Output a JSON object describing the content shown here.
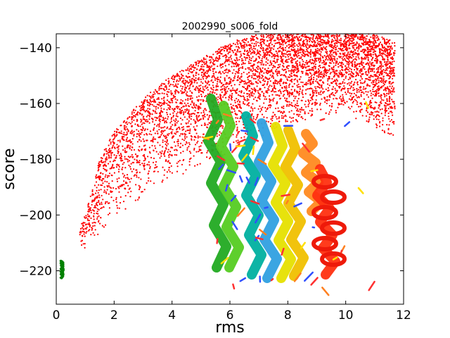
{
  "chart_data": {
    "type": "scatter",
    "title": "2002990_s006_fold",
    "xlabel": "rms",
    "ylabel": "score",
    "xlim": [
      0,
      12
    ],
    "ylim": [
      -232,
      -135
    ],
    "x_ticks": [
      "0",
      "2",
      "4",
      "6",
      "8",
      "10",
      "12"
    ],
    "y_ticks": [
      "−140",
      "−160",
      "−180",
      "−200",
      "−220"
    ],
    "x_tick_values": [
      0,
      2,
      4,
      6,
      8,
      10,
      12
    ],
    "y_tick_values": [
      -140,
      -160,
      -180,
      -200,
      -220
    ],
    "grid": false,
    "series": [
      {
        "color": "#ff0000",
        "description_points": "dense cloud of decoy scores; lower envelope rises from about -210 at rms 1 to about -150 at rms 10",
        "envelope": [
          {
            "x": 0.8,
            "ymin": -211,
            "ymax": -205
          },
          {
            "x": 1.0,
            "ymin": -213,
            "ymax": -200
          },
          {
            "x": 1.5,
            "ymin": -207,
            "ymax": -180
          },
          {
            "x": 2.0,
            "ymin": -201,
            "ymax": -170
          },
          {
            "x": 3.0,
            "ymin": -194,
            "ymax": -158
          },
          {
            "x": 4.0,
            "ymin": -188,
            "ymax": -150
          },
          {
            "x": 5.0,
            "ymin": -183,
            "ymax": -144
          },
          {
            "x": 6.0,
            "ymin": -178,
            "ymax": -138
          },
          {
            "x": 7.0,
            "ymin": -173,
            "ymax": -135
          },
          {
            "x": 8.0,
            "ymin": -168,
            "ymax": -135
          },
          {
            "x": 9.0,
            "ymin": -165,
            "ymax": -135
          },
          {
            "x": 10.0,
            "ymin": -163,
            "ymax": -135
          },
          {
            "x": 11.0,
            "ymin": -170,
            "ymax": -135
          },
          {
            "x": 11.7,
            "ymin": -173,
            "ymax": -138
          }
        ]
      },
      {
        "color": "#008000",
        "description_points": "small cluster of low-rms native-like decoys",
        "envelope": [
          {
            "x": 0.15,
            "ymin": -223,
            "ymax": -216
          },
          {
            "x": 0.25,
            "ymin": -222,
            "ymax": -217
          }
        ]
      }
    ],
    "inset_image": "protein-ribbon-structure-rainbow"
  }
}
